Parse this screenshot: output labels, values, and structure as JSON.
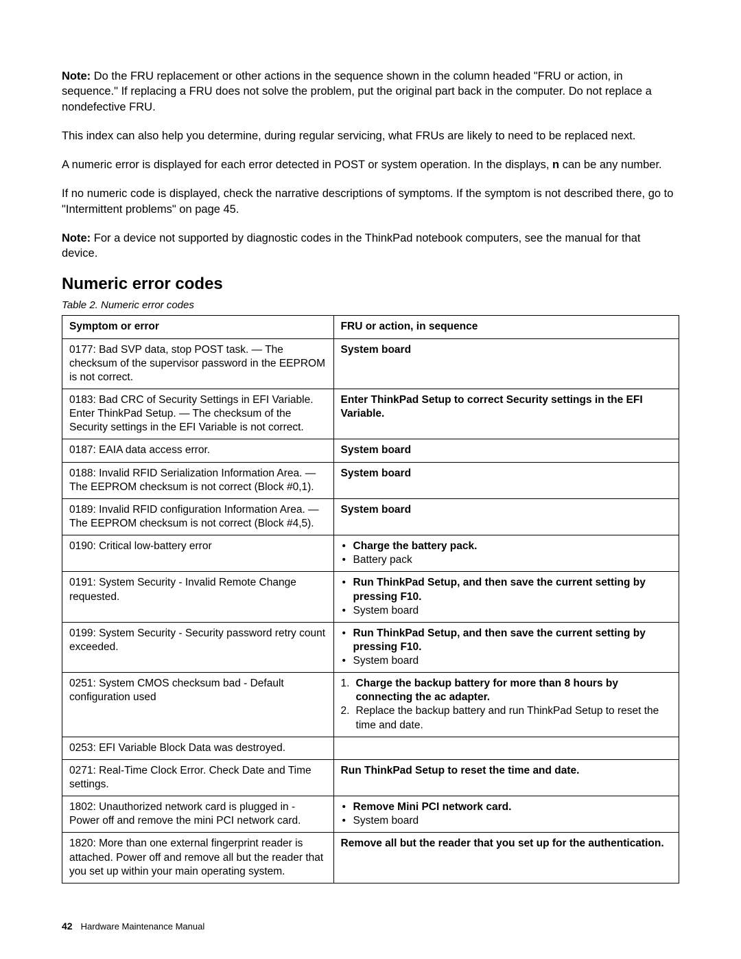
{
  "paragraphs": {
    "note1_prefix": "Note:",
    "note1_body": " Do the FRU replacement or other actions in the sequence shown in the column headed \"FRU or action, in sequence.\" If replacing a FRU does not solve the problem, put the original part back in the computer. Do not replace a nondefective FRU.",
    "p2": "This index can also help you determine, during regular servicing, what FRUs are likely to need to be replaced next.",
    "p3_a": "A numeric error is displayed for each error detected in POST or system operation. In the displays, ",
    "p3_b": "n",
    "p3_c": " can be any number.",
    "p4": "If no numeric code is displayed, check the narrative descriptions of symptoms. If the symptom is not described there, go to \"Intermittent problems\" on page 45.",
    "note2_prefix": "Note:",
    "note2_body": " For a device not supported by diagnostic codes in the ThinkPad notebook computers, see the manual for that device."
  },
  "heading": "Numeric error codes",
  "table_caption": "Table 2.  Numeric error codes",
  "headers": {
    "col1": "Symptom or error",
    "col2": "FRU or action, in sequence"
  },
  "rows": [
    {
      "symptom": "0177: Bad SVP data, stop POST task. — The checksum of the supervisor password in the EEPROM is not correct.",
      "action_plain_bold": "System board"
    },
    {
      "symptom": "0183: Bad CRC of Security Settings in EFI Variable. Enter ThinkPad Setup. — The checksum of the Security settings in the EFI Variable is not correct.",
      "action_plain_bold": "Enter ThinkPad Setup to correct Security settings in the EFI Variable."
    },
    {
      "symptom": "0187: EAIA data access error.",
      "action_plain_bold": "System board"
    },
    {
      "symptom": "0188: Invalid RFID Serialization Information Area. — The EEPROM checksum is not correct (Block #0,1).",
      "action_plain_bold": "System board"
    },
    {
      "symptom": "0189: Invalid RFID configuration Information Area. — The EEPROM checksum is not correct (Block #4,5).",
      "action_plain_bold": "System board"
    },
    {
      "symptom": "0190: Critical low-battery error",
      "action_bullets": [
        {
          "text": "Charge the battery pack.",
          "bold": true
        },
        {
          "text": "Battery pack",
          "bold": false
        }
      ]
    },
    {
      "symptom": "0191: System Security - Invalid Remote Change requested.",
      "action_bullets": [
        {
          "text": "Run ThinkPad Setup, and then save the current setting by pressing F10.",
          "bold": true
        },
        {
          "text": "System board",
          "bold": false
        }
      ]
    },
    {
      "symptom": "0199: System Security - Security password retry count exceeded.",
      "action_bullets": [
        {
          "text": "Run ThinkPad Setup, and then save the current setting by pressing F10.",
          "bold": true
        },
        {
          "text": "System board",
          "bold": false
        }
      ]
    },
    {
      "symptom": "0251: System CMOS checksum bad - Default configuration used",
      "action_numbered": [
        {
          "text": "Charge the backup battery for more than 8 hours by connecting the ac adapter.",
          "bold": true
        },
        {
          "text": "Replace the backup battery and run ThinkPad Setup to reset the time and date.",
          "bold": false
        }
      ]
    },
    {
      "symptom": "0253: EFI Variable Block Data was destroyed.",
      "action_empty": true
    },
    {
      "symptom": "0271: Real-Time Clock Error. Check Date and Time settings.",
      "action_plain_bold": "Run ThinkPad Setup to reset the time and date."
    },
    {
      "symptom": "1802: Unauthorized network card is plugged in - Power off and remove the mini PCI network card.",
      "action_bullets": [
        {
          "text": "Remove Mini PCI network card.",
          "bold": true
        },
        {
          "text": "System board",
          "bold": false
        }
      ]
    },
    {
      "symptom": "1820: More than one external fingerprint reader is attached. Power off and remove all but the reader that you set up within your main operating system.",
      "action_plain_bold": "Remove all but the reader that you set up for the authentication."
    }
  ],
  "footer": {
    "pagenum": "42",
    "title": "Hardware Maintenance Manual"
  }
}
